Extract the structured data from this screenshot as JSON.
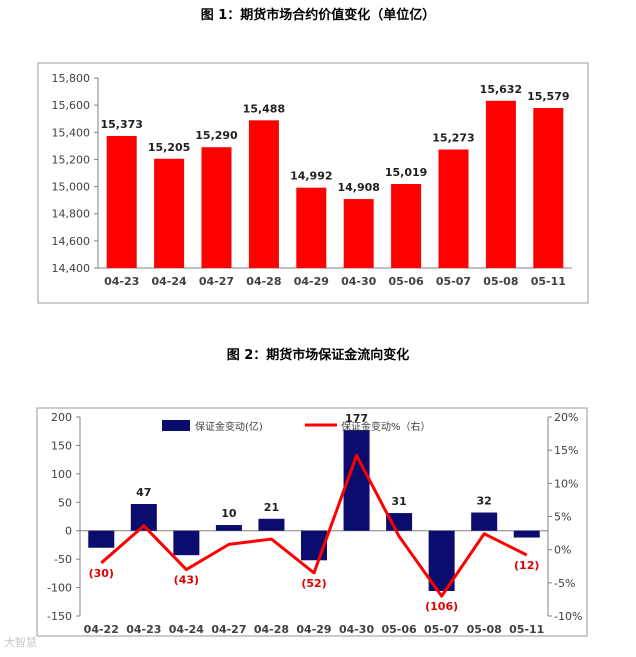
{
  "chart_data": [
    {
      "type": "bar",
      "title": "图 1：期货市场合约价值变化（单位亿）",
      "categories": [
        "04-23",
        "04-24",
        "04-27",
        "04-28",
        "04-29",
        "04-30",
        "05-06",
        "05-07",
        "05-08",
        "05-11"
      ],
      "values": [
        15373,
        15205,
        15290,
        15488,
        14992,
        14908,
        15019,
        15273,
        15632,
        15579
      ],
      "value_labels": [
        "15,373",
        "15,205",
        "15,290",
        "15,488",
        "14,992",
        "14,908",
        "15,019",
        "15,273",
        "15,632",
        "15,579"
      ],
      "ylim": [
        14400,
        15800
      ],
      "yticks": [
        "14,400",
        "14,600",
        "14,800",
        "15,000",
        "15,200",
        "15,400",
        "15,600",
        "15,800"
      ],
      "color": "#ff0000",
      "grid": false
    },
    {
      "type": "bar+line",
      "title": "图 2：期货市场保证金流向变化",
      "categories": [
        "04-22",
        "04-23",
        "04-24",
        "04-27",
        "04-28",
        "04-29",
        "04-30",
        "05-06",
        "05-07",
        "05-08",
        "05-11"
      ],
      "series": [
        {
          "name": "保证金变动(亿)",
          "type": "bar",
          "axis": "left",
          "values": [
            -30,
            47,
            -43,
            10,
            21,
            -52,
            177,
            31,
            -106,
            32,
            -12
          ],
          "color": "#0c0c6e"
        },
        {
          "name": "保证金变动%（右）",
          "type": "line",
          "axis": "right",
          "values_percent": [
            -2.0,
            3.6,
            -3.0,
            0.8,
            1.6,
            -3.5,
            14.2,
            2.0,
            -7.0,
            2.4,
            -0.8
          ],
          "color": "#ff0000"
        }
      ],
      "bar_labels": [
        "(30)",
        "47",
        "(43)",
        "10",
        "21",
        "(52)",
        "177",
        "31",
        "(106)",
        "32",
        "(12)"
      ],
      "ylim_left": [
        -150,
        200
      ],
      "yticks_left": [
        "200",
        "150",
        "100",
        "50",
        "0",
        "-50",
        "-100",
        "-150"
      ],
      "ylim_right": [
        -10,
        20
      ],
      "yticks_right": [
        "20%",
        "15%",
        "10%",
        "5%",
        "0%",
        "-5%",
        "-10%"
      ],
      "legend": "top",
      "grid": false
    }
  ],
  "watermark": "大智慧"
}
